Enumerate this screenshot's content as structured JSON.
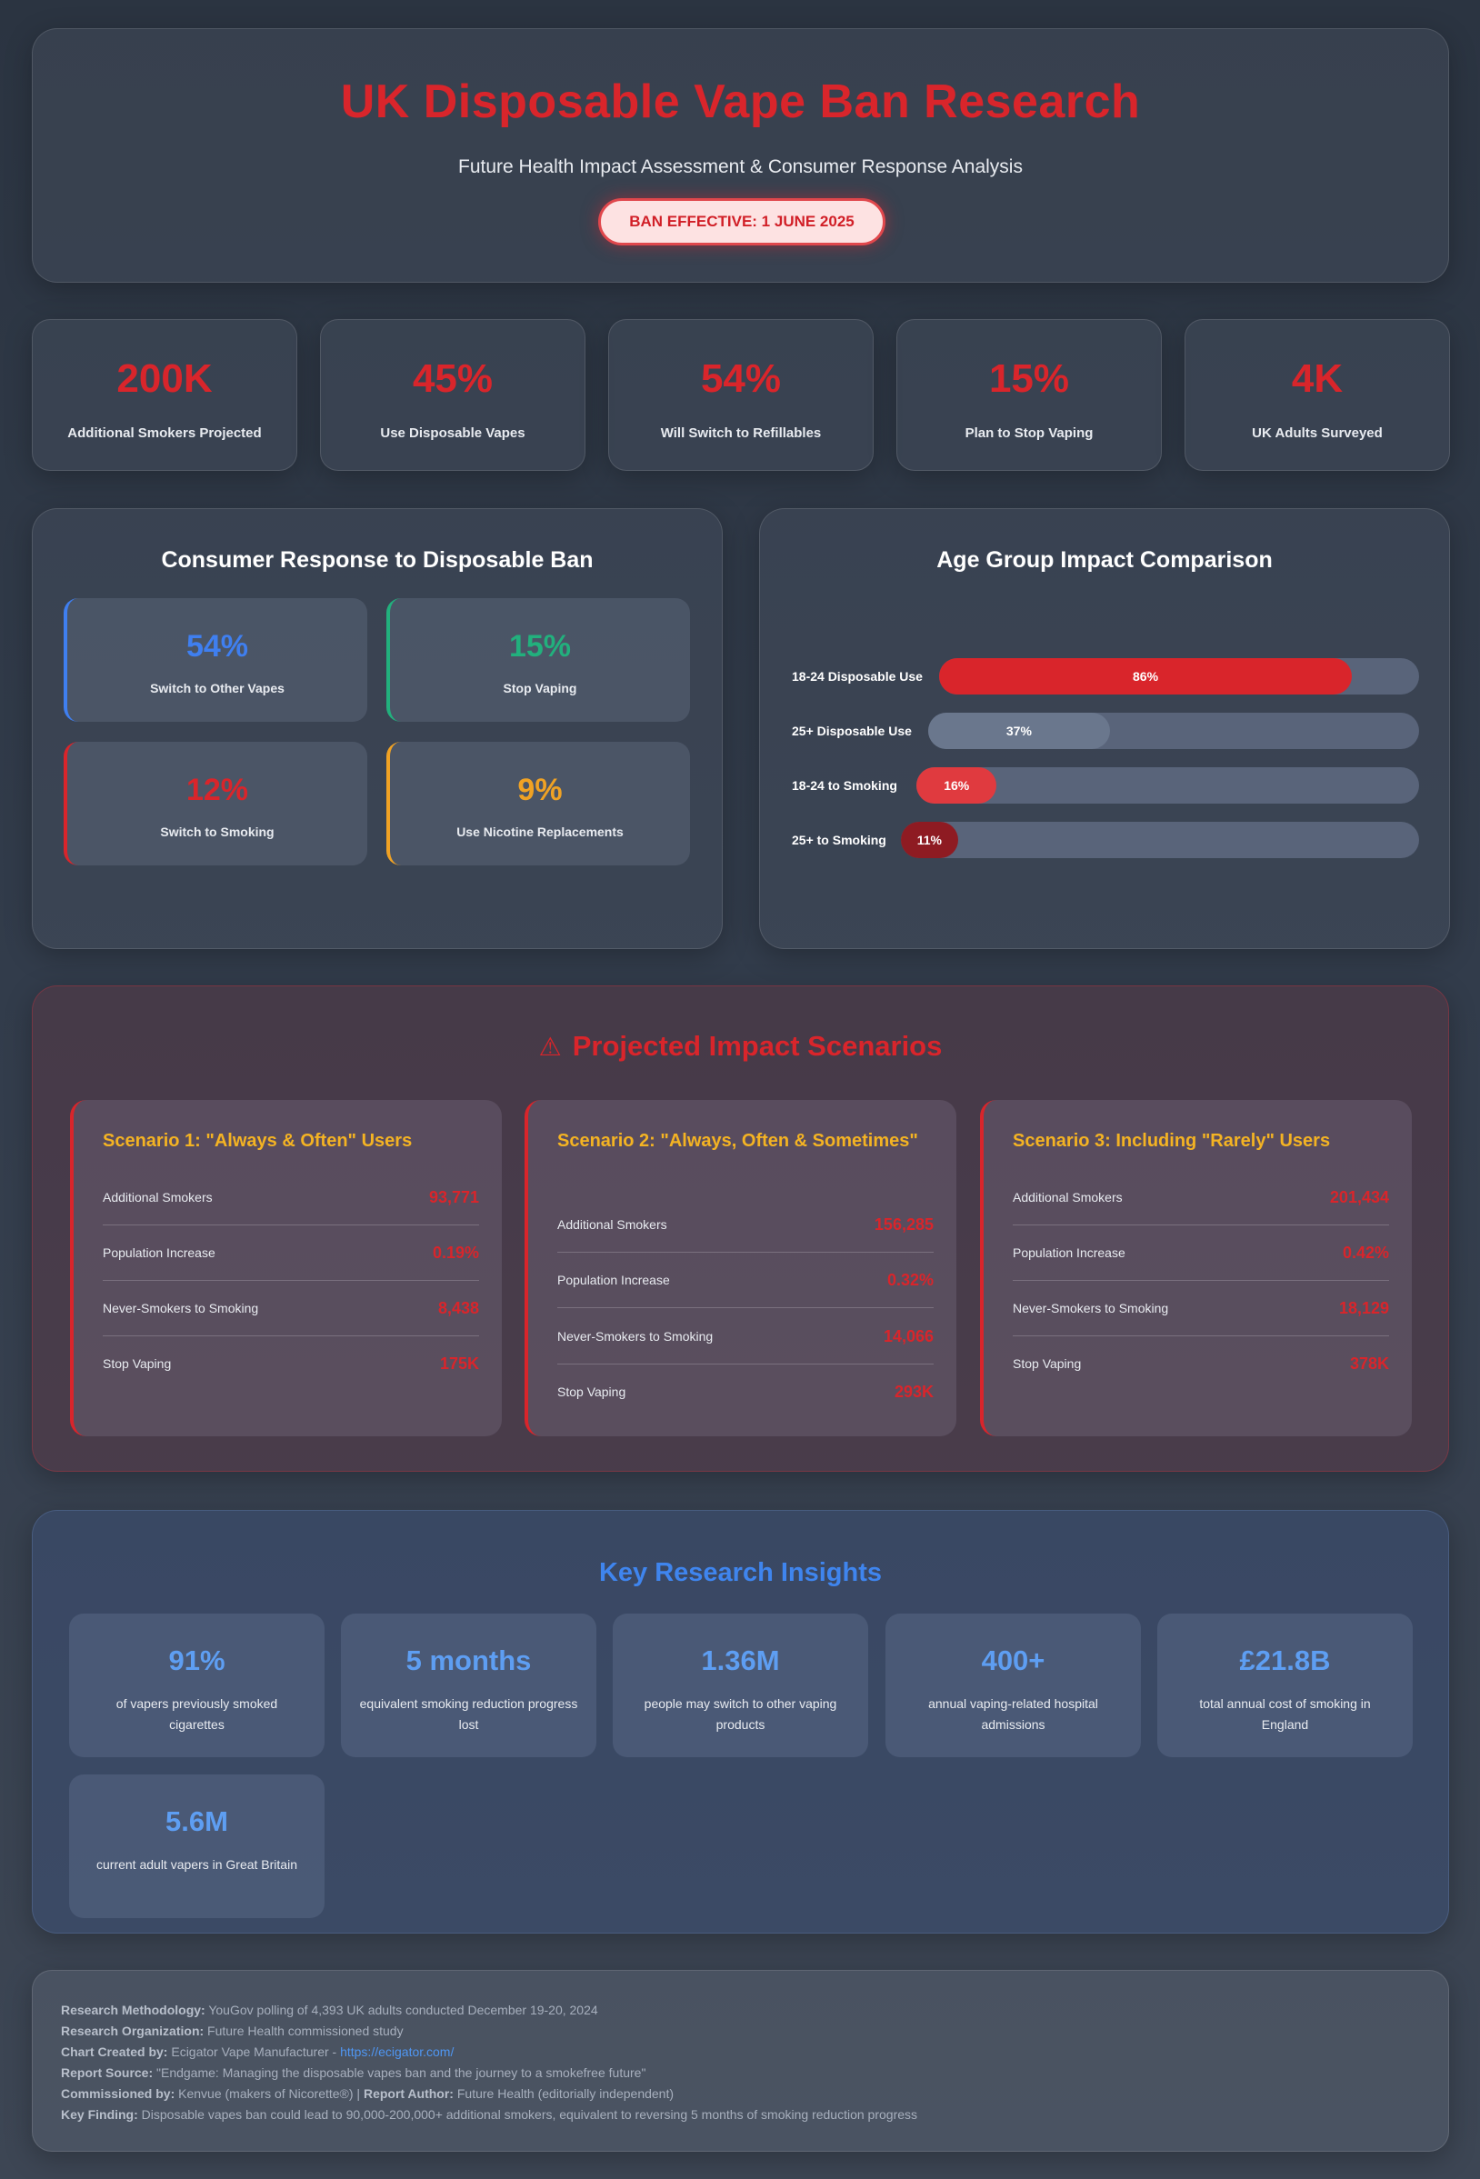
{
  "header": {
    "title": "UK Disposable Vape Ban Research",
    "subtitle": "Future Health Impact Assessment & Consumer Response Analysis",
    "badge": "BAN EFFECTIVE: 1 JUNE 2025"
  },
  "stats": [
    {
      "value": "200K",
      "label": "Additional Smokers Projected"
    },
    {
      "value": "45%",
      "label": "Use Disposable Vapes"
    },
    {
      "value": "54%",
      "label": "Will Switch to Refillables"
    },
    {
      "value": "15%",
      "label": "Plan to Stop Vaping"
    },
    {
      "value": "4K",
      "label": "UK Adults Surveyed"
    }
  ],
  "consumer": {
    "title": "Consumer Response to Disposable Ban",
    "items": [
      {
        "value": "54%",
        "label": "Switch to Other Vapes",
        "color": "#3f7ff0"
      },
      {
        "value": "15%",
        "label": "Stop Vaping",
        "color": "#22b07d"
      },
      {
        "value": "12%",
        "label": "Switch to Smoking",
        "color": "#d9252b"
      },
      {
        "value": "9%",
        "label": "Use Nicotine Replacements",
        "color": "#f0a224"
      }
    ]
  },
  "age": {
    "title": "Age Group Impact Comparison",
    "bars": [
      {
        "label": "18-24 Disposable Use",
        "value": "86%",
        "fraction": 0.86,
        "color": "#d9252b"
      },
      {
        "label": "25+ Disposable Use",
        "value": "37%",
        "fraction": 0.37,
        "color": "#6a778d"
      },
      {
        "label": "18-24 to Smoking",
        "value": "16%",
        "fraction": 0.16,
        "color": "#e03a3f"
      },
      {
        "label": "25+ to Smoking",
        "value": "11%",
        "fraction": 0.11,
        "color": "#8e1b22"
      }
    ]
  },
  "scenarios": {
    "title": "Projected Impact Scenarios",
    "items": [
      {
        "heading": "Scenario 1: \"Always & Often\" Users",
        "rows": [
          {
            "k": "Additional Smokers",
            "v": "93,771"
          },
          {
            "k": "Population Increase",
            "v": "0.19%"
          },
          {
            "k": "Never-Smokers to Smoking",
            "v": "8,438"
          },
          {
            "k": "Stop Vaping",
            "v": "175K"
          }
        ]
      },
      {
        "heading": "Scenario 2: \"Always, Often & Sometimes\"",
        "rows": [
          {
            "k": "Additional Smokers",
            "v": "156,285"
          },
          {
            "k": "Population Increase",
            "v": "0.32%"
          },
          {
            "k": "Never-Smokers to Smoking",
            "v": "14,066"
          },
          {
            "k": "Stop Vaping",
            "v": "293K"
          }
        ]
      },
      {
        "heading": "Scenario 3: Including \"Rarely\" Users",
        "rows": [
          {
            "k": "Additional Smokers",
            "v": "201,434"
          },
          {
            "k": "Population Increase",
            "v": "0.42%"
          },
          {
            "k": "Never-Smokers to Smoking",
            "v": "18,129"
          },
          {
            "k": "Stop Vaping",
            "v": "378K"
          }
        ]
      }
    ]
  },
  "insights": {
    "title": "Key Research Insights",
    "items": [
      {
        "value": "91%",
        "label": "of vapers previously smoked cigarettes"
      },
      {
        "value": "5 months",
        "label": "equivalent smoking reduction progress lost"
      },
      {
        "value": "1.36M",
        "label": "people may switch to other vaping products"
      },
      {
        "value": "400+",
        "label": "annual vaping-related hospital admissions"
      },
      {
        "value": "£21.8B",
        "label": "total annual cost of smoking in England"
      },
      {
        "value": "5.6M",
        "label": "current adult vapers in Great Britain"
      }
    ]
  },
  "footer": {
    "methodology_k": "Research Methodology:",
    "methodology_v": "YouGov polling of 4,393 UK adults conducted December 19-20, 2024",
    "org_k": "Research Organization:",
    "org_v": "Future Health commissioned study",
    "chart_k": "Chart Created by:",
    "chart_v": "Ecigator Vape Manufacturer - ",
    "chart_link": "https://ecigator.com/",
    "source_k": "Report Source:",
    "source_v": "\"Endgame: Managing the disposable vapes ban and the journey to a smokefree future\"",
    "comm_k": "Commissioned by:",
    "comm_v": "Kenvue (makers of Nicorette®) | ",
    "author_k": "Report Author:",
    "author_v": "Future Health (editorially independent)",
    "finding_k": "Key Finding:",
    "finding_v": "Disposable vapes ban could lead to 90,000-200,000+ additional smokers, equivalent to reversing 5 months of smoking reduction progress"
  }
}
